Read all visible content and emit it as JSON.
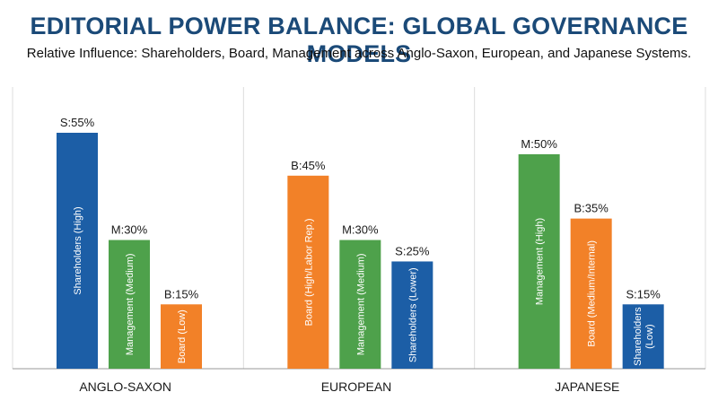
{
  "chart_data": {
    "type": "bar",
    "title": "EDITORIAL POWER BALANCE: GLOBAL GOVERNANCE MODELS",
    "subtitle": "Relative Influence: Shareholders, Board, Management across Anglo-Saxon, European, and Japanese Systems.",
    "grid": false,
    "ylim": [
      0,
      65
    ],
    "colors": {
      "shareholders": "#1c5ea6",
      "board": "#f28128",
      "management": "#4ea14b"
    },
    "groups": [
      {
        "category": "ANGLO-SAXON",
        "bars": [
          {
            "role": "shareholders",
            "label": "Shareholders (High)",
            "value": 55,
            "value_label": "S:55%"
          },
          {
            "role": "management",
            "label": "Management (Medium)",
            "value": 30,
            "value_label": "M:30%"
          },
          {
            "role": "board",
            "label": "Board (Low)",
            "value": 15,
            "value_label": "B:15%"
          }
        ]
      },
      {
        "category": "EUROPEAN",
        "bars": [
          {
            "role": "board",
            "label": "Board (High/Labor Rep.)",
            "value": 45,
            "value_label": "B:45%"
          },
          {
            "role": "management",
            "label": "Management (Medium)",
            "value": 30,
            "value_label": "M:30%"
          },
          {
            "role": "shareholders",
            "label": "Shareholders (Lower)",
            "value": 25,
            "value_label": "S:25%"
          }
        ]
      },
      {
        "category": "JAPANESE",
        "bars": [
          {
            "role": "management",
            "label": "Management (High)",
            "value": 50,
            "value_label": "M:50%"
          },
          {
            "role": "board",
            "label": "Board (Medium/Internal)",
            "value": 35,
            "value_label": "B:35%"
          },
          {
            "role": "shareholders",
            "label": "Shareholders (Low)",
            "value": 15,
            "value_label": "S:15%",
            "label_lines": [
              "Shareholders",
              "(Low)"
            ]
          }
        ]
      }
    ]
  }
}
